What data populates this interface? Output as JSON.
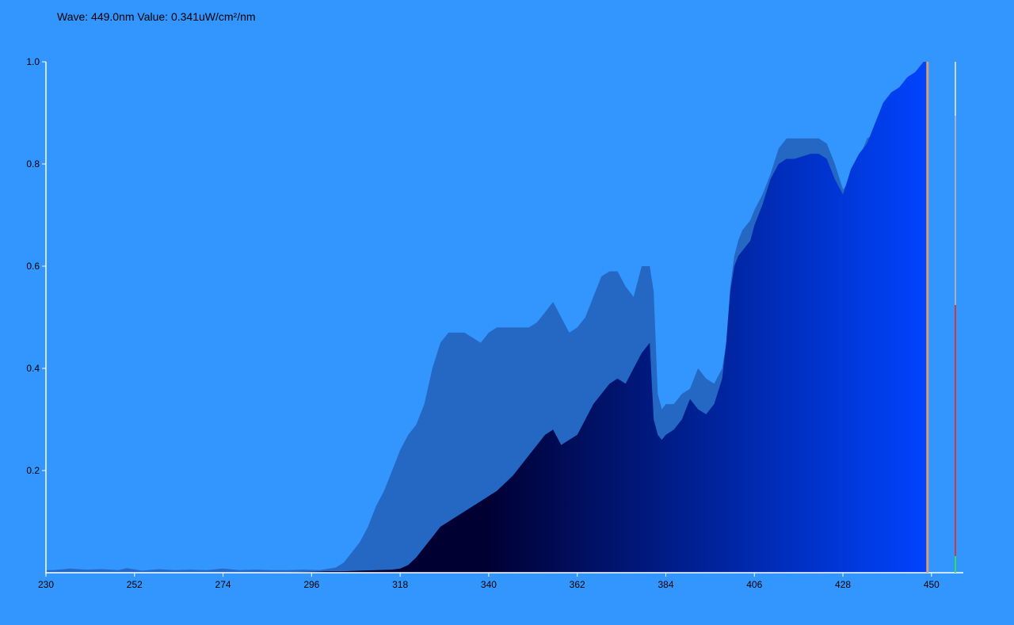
{
  "readout": {
    "text": "Wave: 449.0nm Value: 0.341uW/cm²/nm"
  },
  "chart_data": {
    "type": "area",
    "title": "",
    "xlabel": "",
    "ylabel": "",
    "xlim": [
      230,
      452
    ],
    "ylim": [
      0,
      1.0
    ],
    "x_ticks": [
      230,
      252,
      274,
      296,
      318,
      340,
      362,
      384,
      406,
      428,
      450
    ],
    "y_ticks": [
      0.2,
      0.4,
      0.6,
      0.8,
      1.0
    ],
    "x_tick_labels": [
      "230",
      "252",
      "274",
      "296",
      "318",
      "340",
      "362",
      "384",
      "406",
      "428",
      "450"
    ],
    "y_tick_labels": [
      "0.2",
      "0.4",
      "0.6",
      "0.8",
      "1.0"
    ],
    "grid": false,
    "cursor_wavelength": 449.0,
    "series": [
      {
        "color": "#2468C4",
        "x": [
          230,
          232,
          236,
          240,
          244,
          248,
          250,
          254,
          258,
          262,
          266,
          270,
          274,
          278,
          282,
          286,
          290,
          294,
          298,
          302,
          304,
          306,
          308,
          310,
          312,
          314,
          316,
          318,
          320,
          322,
          324,
          326,
          328,
          330,
          332,
          334,
          336,
          338,
          340,
          342,
          344,
          346,
          348,
          350,
          352,
          354,
          356,
          358,
          360,
          362,
          364,
          366,
          368,
          370,
          372,
          374,
          376,
          378,
          380,
          381,
          382,
          383,
          384,
          386,
          388,
          390,
          392,
          394,
          396,
          398,
          399,
          400,
          401,
          402,
          403,
          404,
          405,
          406,
          408,
          410,
          412,
          414,
          416,
          418,
          420,
          422,
          424,
          426,
          428,
          430,
          432,
          434,
          436,
          438,
          440,
          442,
          444,
          446,
          447,
          448,
          449
        ],
        "values": [
          0.005,
          0.005,
          0.008,
          0.006,
          0.007,
          0.005,
          0.009,
          0.004,
          0.007,
          0.005,
          0.006,
          0.005,
          0.008,
          0.005,
          0.006,
          0.005,
          0.005,
          0.006,
          0.005,
          0.01,
          0.02,
          0.04,
          0.06,
          0.09,
          0.13,
          0.16,
          0.2,
          0.24,
          0.27,
          0.29,
          0.33,
          0.4,
          0.45,
          0.47,
          0.47,
          0.47,
          0.46,
          0.45,
          0.47,
          0.48,
          0.48,
          0.48,
          0.48,
          0.48,
          0.49,
          0.51,
          0.53,
          0.5,
          0.47,
          0.48,
          0.5,
          0.54,
          0.58,
          0.59,
          0.59,
          0.56,
          0.54,
          0.6,
          0.6,
          0.55,
          0.35,
          0.32,
          0.33,
          0.33,
          0.35,
          0.36,
          0.4,
          0.38,
          0.37,
          0.4,
          0.45,
          0.56,
          0.62,
          0.65,
          0.67,
          0.68,
          0.69,
          0.71,
          0.74,
          0.78,
          0.83,
          0.85,
          0.85,
          0.85,
          0.85,
          0.85,
          0.84,
          0.8,
          0.75,
          0.77,
          0.81,
          0.85,
          0.86,
          0.9,
          0.94,
          0.95,
          0.96,
          0.98,
          0.99,
          0.99,
          1.0
        ]
      },
      {
        "color_gradient": [
          "#000033",
          "#0044FF"
        ],
        "x": [
          230,
          290,
          296,
          300,
          304,
          308,
          312,
          316,
          318,
          320,
          322,
          324,
          326,
          328,
          330,
          332,
          334,
          336,
          338,
          340,
          342,
          344,
          346,
          348,
          350,
          352,
          354,
          356,
          358,
          360,
          362,
          364,
          366,
          368,
          370,
          372,
          374,
          376,
          378,
          380,
          381,
          382,
          383,
          384,
          386,
          388,
          390,
          392,
          394,
          396,
          398,
          399,
          400,
          401,
          402,
          403,
          404,
          405,
          406,
          408,
          410,
          412,
          414,
          416,
          418,
          420,
          422,
          424,
          426,
          428,
          430,
          432,
          434,
          436,
          438,
          440,
          442,
          444,
          446,
          447,
          448,
          449
        ],
        "values": [
          0.0,
          0.001,
          0.002,
          0.003,
          0.003,
          0.004,
          0.005,
          0.006,
          0.008,
          0.015,
          0.03,
          0.05,
          0.07,
          0.09,
          0.1,
          0.11,
          0.12,
          0.13,
          0.14,
          0.15,
          0.16,
          0.175,
          0.19,
          0.21,
          0.23,
          0.25,
          0.27,
          0.28,
          0.25,
          0.26,
          0.27,
          0.3,
          0.33,
          0.35,
          0.37,
          0.38,
          0.37,
          0.4,
          0.43,
          0.45,
          0.3,
          0.27,
          0.26,
          0.27,
          0.28,
          0.3,
          0.34,
          0.32,
          0.31,
          0.33,
          0.38,
          0.45,
          0.55,
          0.6,
          0.62,
          0.63,
          0.64,
          0.65,
          0.68,
          0.72,
          0.77,
          0.8,
          0.81,
          0.81,
          0.815,
          0.82,
          0.82,
          0.81,
          0.77,
          0.74,
          0.79,
          0.82,
          0.84,
          0.88,
          0.92,
          0.94,
          0.95,
          0.97,
          0.98,
          0.99,
          1.0,
          1.0
        ]
      }
    ]
  }
}
